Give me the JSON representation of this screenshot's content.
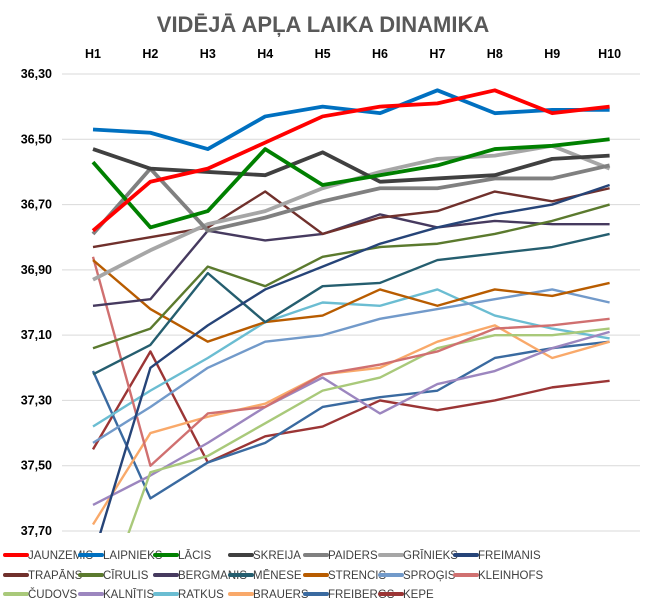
{
  "chart_data": {
    "type": "line",
    "title": "VIDĒJĀ APĻA LAIKA DINAMIKA",
    "xlabel": "",
    "ylabel": "",
    "categories": [
      "H1",
      "H2",
      "H3",
      "H4",
      "H5",
      "H6",
      "H7",
      "H8",
      "H9",
      "H10"
    ],
    "x_axis_position": "top",
    "y_inverted": true,
    "ylim": [
      36.3,
      37.7
    ],
    "yticks": [
      "36,30",
      "36,50",
      "36,70",
      "36,90",
      "37,10",
      "37,30",
      "37,50",
      "37,70"
    ],
    "ytick_values": [
      36.3,
      36.5,
      36.7,
      36.9,
      37.1,
      37.3,
      37.5,
      37.7
    ],
    "grid": true,
    "legend_position": "bottom",
    "series": [
      {
        "name": "JAUNZEMIS",
        "color": "#ff0000",
        "bold": true,
        "values": [
          36.78,
          36.63,
          36.59,
          36.51,
          36.43,
          36.4,
          36.39,
          36.35,
          36.42,
          36.4
        ]
      },
      {
        "name": "LAIPNIEKS",
        "color": "#0070c0",
        "bold": true,
        "values": [
          36.47,
          36.48,
          36.53,
          36.43,
          36.4,
          36.42,
          36.35,
          36.42,
          36.41,
          36.41
        ]
      },
      {
        "name": "LĀCIS",
        "color": "#008000",
        "bold": true,
        "values": [
          36.57,
          36.77,
          36.72,
          36.53,
          36.64,
          36.61,
          36.58,
          36.53,
          36.52,
          36.5
        ]
      },
      {
        "name": "SKREIJA",
        "color": "#404040",
        "bold": true,
        "values": [
          36.53,
          36.59,
          36.6,
          36.61,
          36.54,
          36.63,
          36.62,
          36.61,
          36.56,
          36.55
        ]
      },
      {
        "name": "PAIDERS",
        "color": "#808080",
        "bold": true,
        "values": [
          36.79,
          36.59,
          36.78,
          36.74,
          36.69,
          36.65,
          36.65,
          36.62,
          36.62,
          36.58
        ]
      },
      {
        "name": "GRĪNIEKS",
        "color": "#a6a6a6",
        "bold": true,
        "values": [
          36.93,
          36.84,
          36.76,
          36.72,
          36.65,
          36.6,
          36.56,
          36.55,
          36.52,
          36.59
        ]
      },
      {
        "name": "FREIMANIS",
        "color": "#264478",
        "bold": false,
        "values": [
          37.78,
          37.2,
          37.07,
          36.96,
          36.89,
          36.82,
          36.77,
          36.73,
          36.7,
          36.64
        ]
      },
      {
        "name": "TRAPĀNS",
        "color": "#70302c",
        "bold": false,
        "values": [
          36.83,
          36.8,
          36.77,
          36.66,
          36.79,
          36.74,
          36.72,
          36.66,
          36.69,
          36.65
        ]
      },
      {
        "name": "CĪRULIS",
        "color": "#5b7a2e",
        "bold": false,
        "values": [
          37.14,
          37.08,
          36.89,
          36.95,
          36.86,
          36.83,
          36.82,
          36.79,
          36.75,
          36.7
        ]
      },
      {
        "name": "BERGMANIS",
        "color": "#463a5f",
        "bold": false,
        "values": [
          37.01,
          36.99,
          36.78,
          36.81,
          36.79,
          36.73,
          36.77,
          36.75,
          36.76,
          36.76
        ]
      },
      {
        "name": "MĒNESE",
        "color": "#255e6f",
        "bold": false,
        "values": [
          37.22,
          37.13,
          36.91,
          37.06,
          36.95,
          36.94,
          36.87,
          36.85,
          36.83,
          36.79
        ]
      },
      {
        "name": "STRENCIS",
        "color": "#b85c00",
        "bold": false,
        "values": [
          36.87,
          37.02,
          37.12,
          37.06,
          37.04,
          36.96,
          37.01,
          36.96,
          36.98,
          36.94
        ]
      },
      {
        "name": "SPROĢIS",
        "color": "#729aca",
        "bold": false,
        "values": [
          37.43,
          37.32,
          37.2,
          37.12,
          37.1,
          37.05,
          37.02,
          36.99,
          36.96,
          37.0
        ]
      },
      {
        "name": "KLEINHOFS",
        "color": "#d07070",
        "bold": false,
        "values": [
          36.86,
          37.5,
          37.34,
          37.32,
          37.22,
          37.19,
          37.15,
          37.08,
          37.07,
          37.05
        ]
      },
      {
        "name": "ČUDOVS",
        "color": "#a9c97a",
        "bold": false,
        "values": [
          38.01,
          37.52,
          37.47,
          37.37,
          37.27,
          37.23,
          37.14,
          37.1,
          37.1,
          37.08
        ]
      },
      {
        "name": "KALNĪTIS",
        "color": "#9c86bf",
        "bold": false,
        "values": [
          37.62,
          37.53,
          37.43,
          37.32,
          37.23,
          37.34,
          37.25,
          37.21,
          37.14,
          37.09
        ]
      },
      {
        "name": "RATKUS",
        "color": "#6bbdd2",
        "bold": false,
        "values": [
          37.38,
          37.27,
          37.17,
          37.06,
          37.0,
          37.01,
          36.96,
          37.04,
          37.08,
          37.11
        ]
      },
      {
        "name": "BRAUERS",
        "color": "#f9a96a",
        "bold": false,
        "values": [
          37.68,
          37.4,
          37.35,
          37.31,
          37.22,
          37.2,
          37.12,
          37.07,
          37.17,
          37.12
        ]
      },
      {
        "name": "FREIBERGS",
        "color": "#3a6aa0",
        "bold": false,
        "values": [
          37.21,
          37.6,
          37.49,
          37.43,
          37.32,
          37.29,
          37.27,
          37.17,
          37.14,
          37.12
        ]
      },
      {
        "name": "KEPE",
        "color": "#9b3535",
        "bold": false,
        "values": [
          37.45,
          37.15,
          37.49,
          37.41,
          37.38,
          37.3,
          37.33,
          37.3,
          37.26,
          37.24
        ]
      }
    ]
  }
}
